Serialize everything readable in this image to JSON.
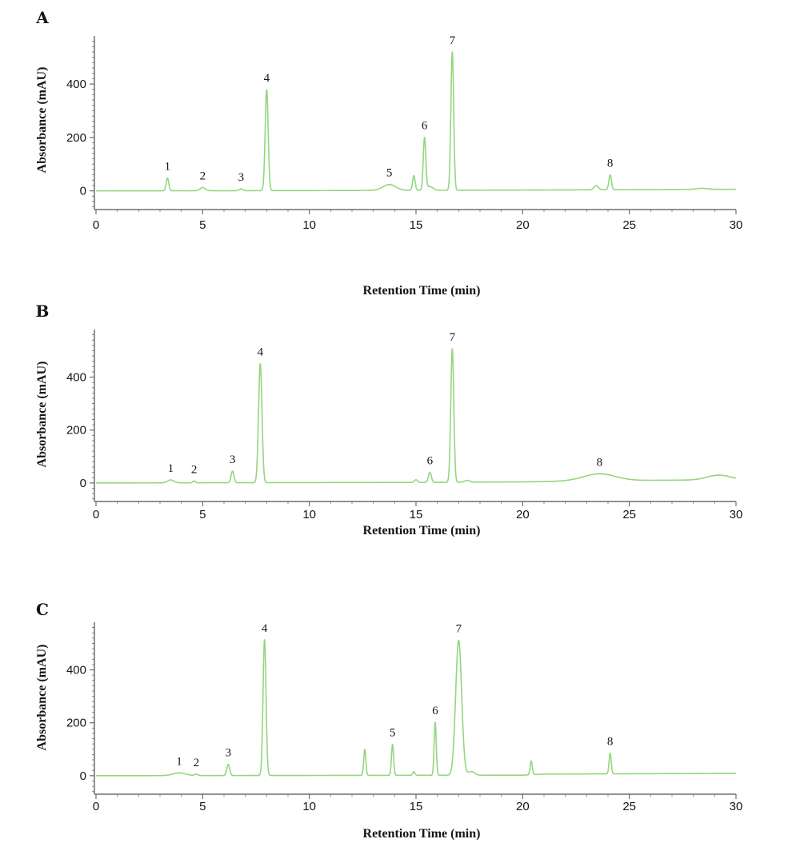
{
  "figure": {
    "colors": {
      "trace": "#93d67f",
      "axis": "#6e6e6e",
      "text": "#151515",
      "background": "#ffffff"
    }
  },
  "chart_data": [
    {
      "panel": "A",
      "type": "line",
      "xlabel": "Retention Time (min)",
      "ylabel": "Absorbance (mAU)",
      "xlim": [
        0,
        30
      ],
      "ylim": [
        -70,
        580
      ],
      "xticks": [
        0,
        5,
        10,
        15,
        20,
        25,
        30
      ],
      "yticks": [
        0,
        200,
        400
      ],
      "grid": false,
      "baseline": [
        [
          0,
          0
        ],
        [
          10,
          1
        ],
        [
          20,
          3
        ],
        [
          30,
          6
        ]
      ],
      "peaks": [
        {
          "label": "1",
          "t": 3.35,
          "height": 48,
          "width": 0.06
        },
        {
          "label": "2",
          "t": 5.0,
          "height": 12,
          "width": 0.12
        },
        {
          "label": "3",
          "t": 6.8,
          "height": 7,
          "width": 0.08
        },
        {
          "label": "4",
          "t": 8.0,
          "height": 378,
          "width": 0.07
        },
        {
          "label": "5",
          "t": 13.75,
          "height": 22,
          "width": 0.3
        },
        {
          "t": 14.9,
          "height": 55,
          "width": 0.06
        },
        {
          "label": "6",
          "t": 15.4,
          "height": 195,
          "width": 0.06
        },
        {
          "t": 15.65,
          "height": 14,
          "width": 0.15
        },
        {
          "label": "7",
          "t": 16.7,
          "height": 518,
          "width": 0.065
        },
        {
          "t": 23.45,
          "height": 16,
          "width": 0.1
        },
        {
          "label": "8",
          "t": 24.1,
          "height": 56,
          "width": 0.06
        },
        {
          "t": 28.4,
          "height": 4,
          "width": 0.25
        }
      ]
    },
    {
      "panel": "B",
      "type": "line",
      "xlabel": "Retention Time (min)",
      "ylabel": "Absorbance (mAU)",
      "xlim": [
        0,
        30
      ],
      "ylim": [
        -70,
        580
      ],
      "xticks": [
        0,
        5,
        10,
        15,
        20,
        25,
        30
      ],
      "yticks": [
        0,
        200,
        400
      ],
      "grid": false,
      "baseline": [
        [
          0,
          0
        ],
        [
          15,
          2
        ],
        [
          20,
          4
        ],
        [
          23,
          8
        ],
        [
          26,
          10
        ],
        [
          30,
          12
        ]
      ],
      "peaks": [
        {
          "label": "1",
          "t": 3.5,
          "height": 11,
          "width": 0.15
        },
        {
          "label": "2",
          "t": 4.6,
          "height": 7,
          "width": 0.06
        },
        {
          "label": "3",
          "t": 6.4,
          "height": 44,
          "width": 0.07
        },
        {
          "label": "4",
          "t": 7.7,
          "height": 450,
          "width": 0.08
        },
        {
          "t": 15.0,
          "height": 10,
          "width": 0.08
        },
        {
          "label": "6",
          "t": 15.65,
          "height": 38,
          "width": 0.07
        },
        {
          "label": "7",
          "t": 16.7,
          "height": 505,
          "width": 0.07
        },
        {
          "t": 17.4,
          "height": 7,
          "width": 0.12
        },
        {
          "label": "8",
          "t": 23.6,
          "height": 26,
          "width": 0.75
        },
        {
          "t": 29.2,
          "height": 18,
          "width": 0.55
        }
      ]
    },
    {
      "panel": "C",
      "type": "line",
      "xlabel": "Retention Time (min)",
      "ylabel": "Absorbance (mAU)",
      "xlim": [
        0,
        30
      ],
      "ylim": [
        -70,
        580
      ],
      "xticks": [
        0,
        5,
        10,
        15,
        20,
        25,
        30
      ],
      "yticks": [
        0,
        200,
        400
      ],
      "grid": false,
      "baseline": [
        [
          0,
          0
        ],
        [
          20,
          2
        ],
        [
          21,
          6
        ],
        [
          30,
          9
        ]
      ],
      "peaks": [
        {
          "label": "1",
          "t": 3.9,
          "height": 10,
          "width": 0.3
        },
        {
          "label": "2",
          "t": 4.7,
          "height": 5,
          "width": 0.08
        },
        {
          "label": "3",
          "t": 6.2,
          "height": 42,
          "width": 0.07
        },
        {
          "label": "4",
          "t": 7.9,
          "height": 513,
          "width": 0.07
        },
        {
          "t": 12.6,
          "height": 98,
          "width": 0.05
        },
        {
          "label": "5",
          "t": 13.9,
          "height": 117,
          "width": 0.05
        },
        {
          "t": 14.9,
          "height": 14,
          "width": 0.05
        },
        {
          "label": "6",
          "t": 15.9,
          "height": 200,
          "width": 0.05
        },
        {
          "label": "7",
          "t": 17.0,
          "height": 510,
          "width": 0.14
        },
        {
          "t": 17.6,
          "height": 14,
          "width": 0.15
        },
        {
          "t": 20.4,
          "height": 52,
          "width": 0.05
        },
        {
          "label": "8",
          "t": 24.1,
          "height": 78,
          "width": 0.05
        }
      ]
    }
  ]
}
